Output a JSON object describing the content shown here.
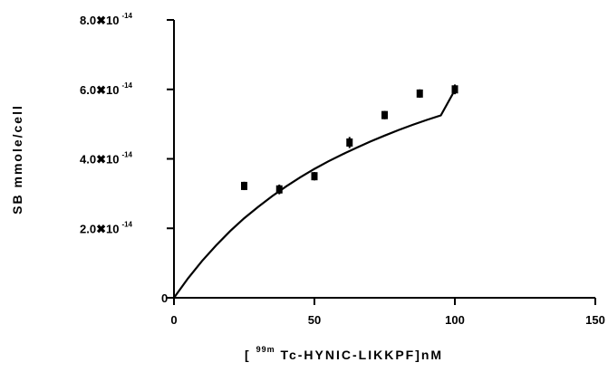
{
  "chart_data": {
    "type": "scatter",
    "ylabel": "SB mmole/cell",
    "xlabel_parts": {
      "open": "[",
      "sup": "99m",
      "main": "Tc-HYNIC-LIKKPF]nM"
    },
    "xlim": [
      0,
      150
    ],
    "ylim": [
      0,
      8e-14
    ],
    "x_ticks": [
      {
        "value": 0,
        "label": "0"
      },
      {
        "value": 50,
        "label": "50"
      },
      {
        "value": 100,
        "label": "100"
      },
      {
        "value": 150,
        "label": "150"
      }
    ],
    "y_ticks": [
      {
        "value": 0,
        "mantissa": "0",
        "exp": ""
      },
      {
        "value": 2e-14,
        "mantissa": "2.0",
        "exp": "-14"
      },
      {
        "value": 4e-14,
        "mantissa": "4.0",
        "exp": "-14"
      },
      {
        "value": 6e-14,
        "mantissa": "6.0",
        "exp": "-14"
      },
      {
        "value": 8e-14,
        "mantissa": "8.0",
        "exp": "-14"
      }
    ],
    "y_tick_times": "✖10",
    "series": [
      {
        "x": [
          25,
          37.5,
          50,
          62.5,
          75,
          87.5,
          100
        ],
        "y": [
          3.22e-14,
          3.12e-14,
          3.5e-14,
          4.47e-14,
          5.26e-14,
          5.88e-14,
          6e-14
        ],
        "y_err": [
          1.2e-15,
          1.4e-15,
          1.2e-15,
          1.6e-15,
          1.2e-15,
          1.2e-15,
          1.4e-15
        ]
      }
    ],
    "fit_curve": {
      "x": [
        0,
        5,
        10,
        15,
        20,
        25,
        30,
        35,
        40,
        45,
        50,
        55,
        60,
        65,
        70,
        75,
        80,
        85,
        90,
        95,
        100
      ],
      "y": [
        0,
        5.6e-15,
        1.06e-14,
        1.51e-14,
        1.92e-14,
        2.29e-14,
        2.62e-14,
        2.93e-14,
        3.21e-14,
        3.47e-14,
        3.71e-14,
        3.93e-14,
        4.13e-14,
        4.32e-14,
        4.5e-14,
        4.67e-14,
        4.83e-14,
        4.98e-14,
        5.12e-14,
        5.25e-14,
        5.98e-14
      ]
    },
    "grid": false,
    "legend": "none"
  }
}
